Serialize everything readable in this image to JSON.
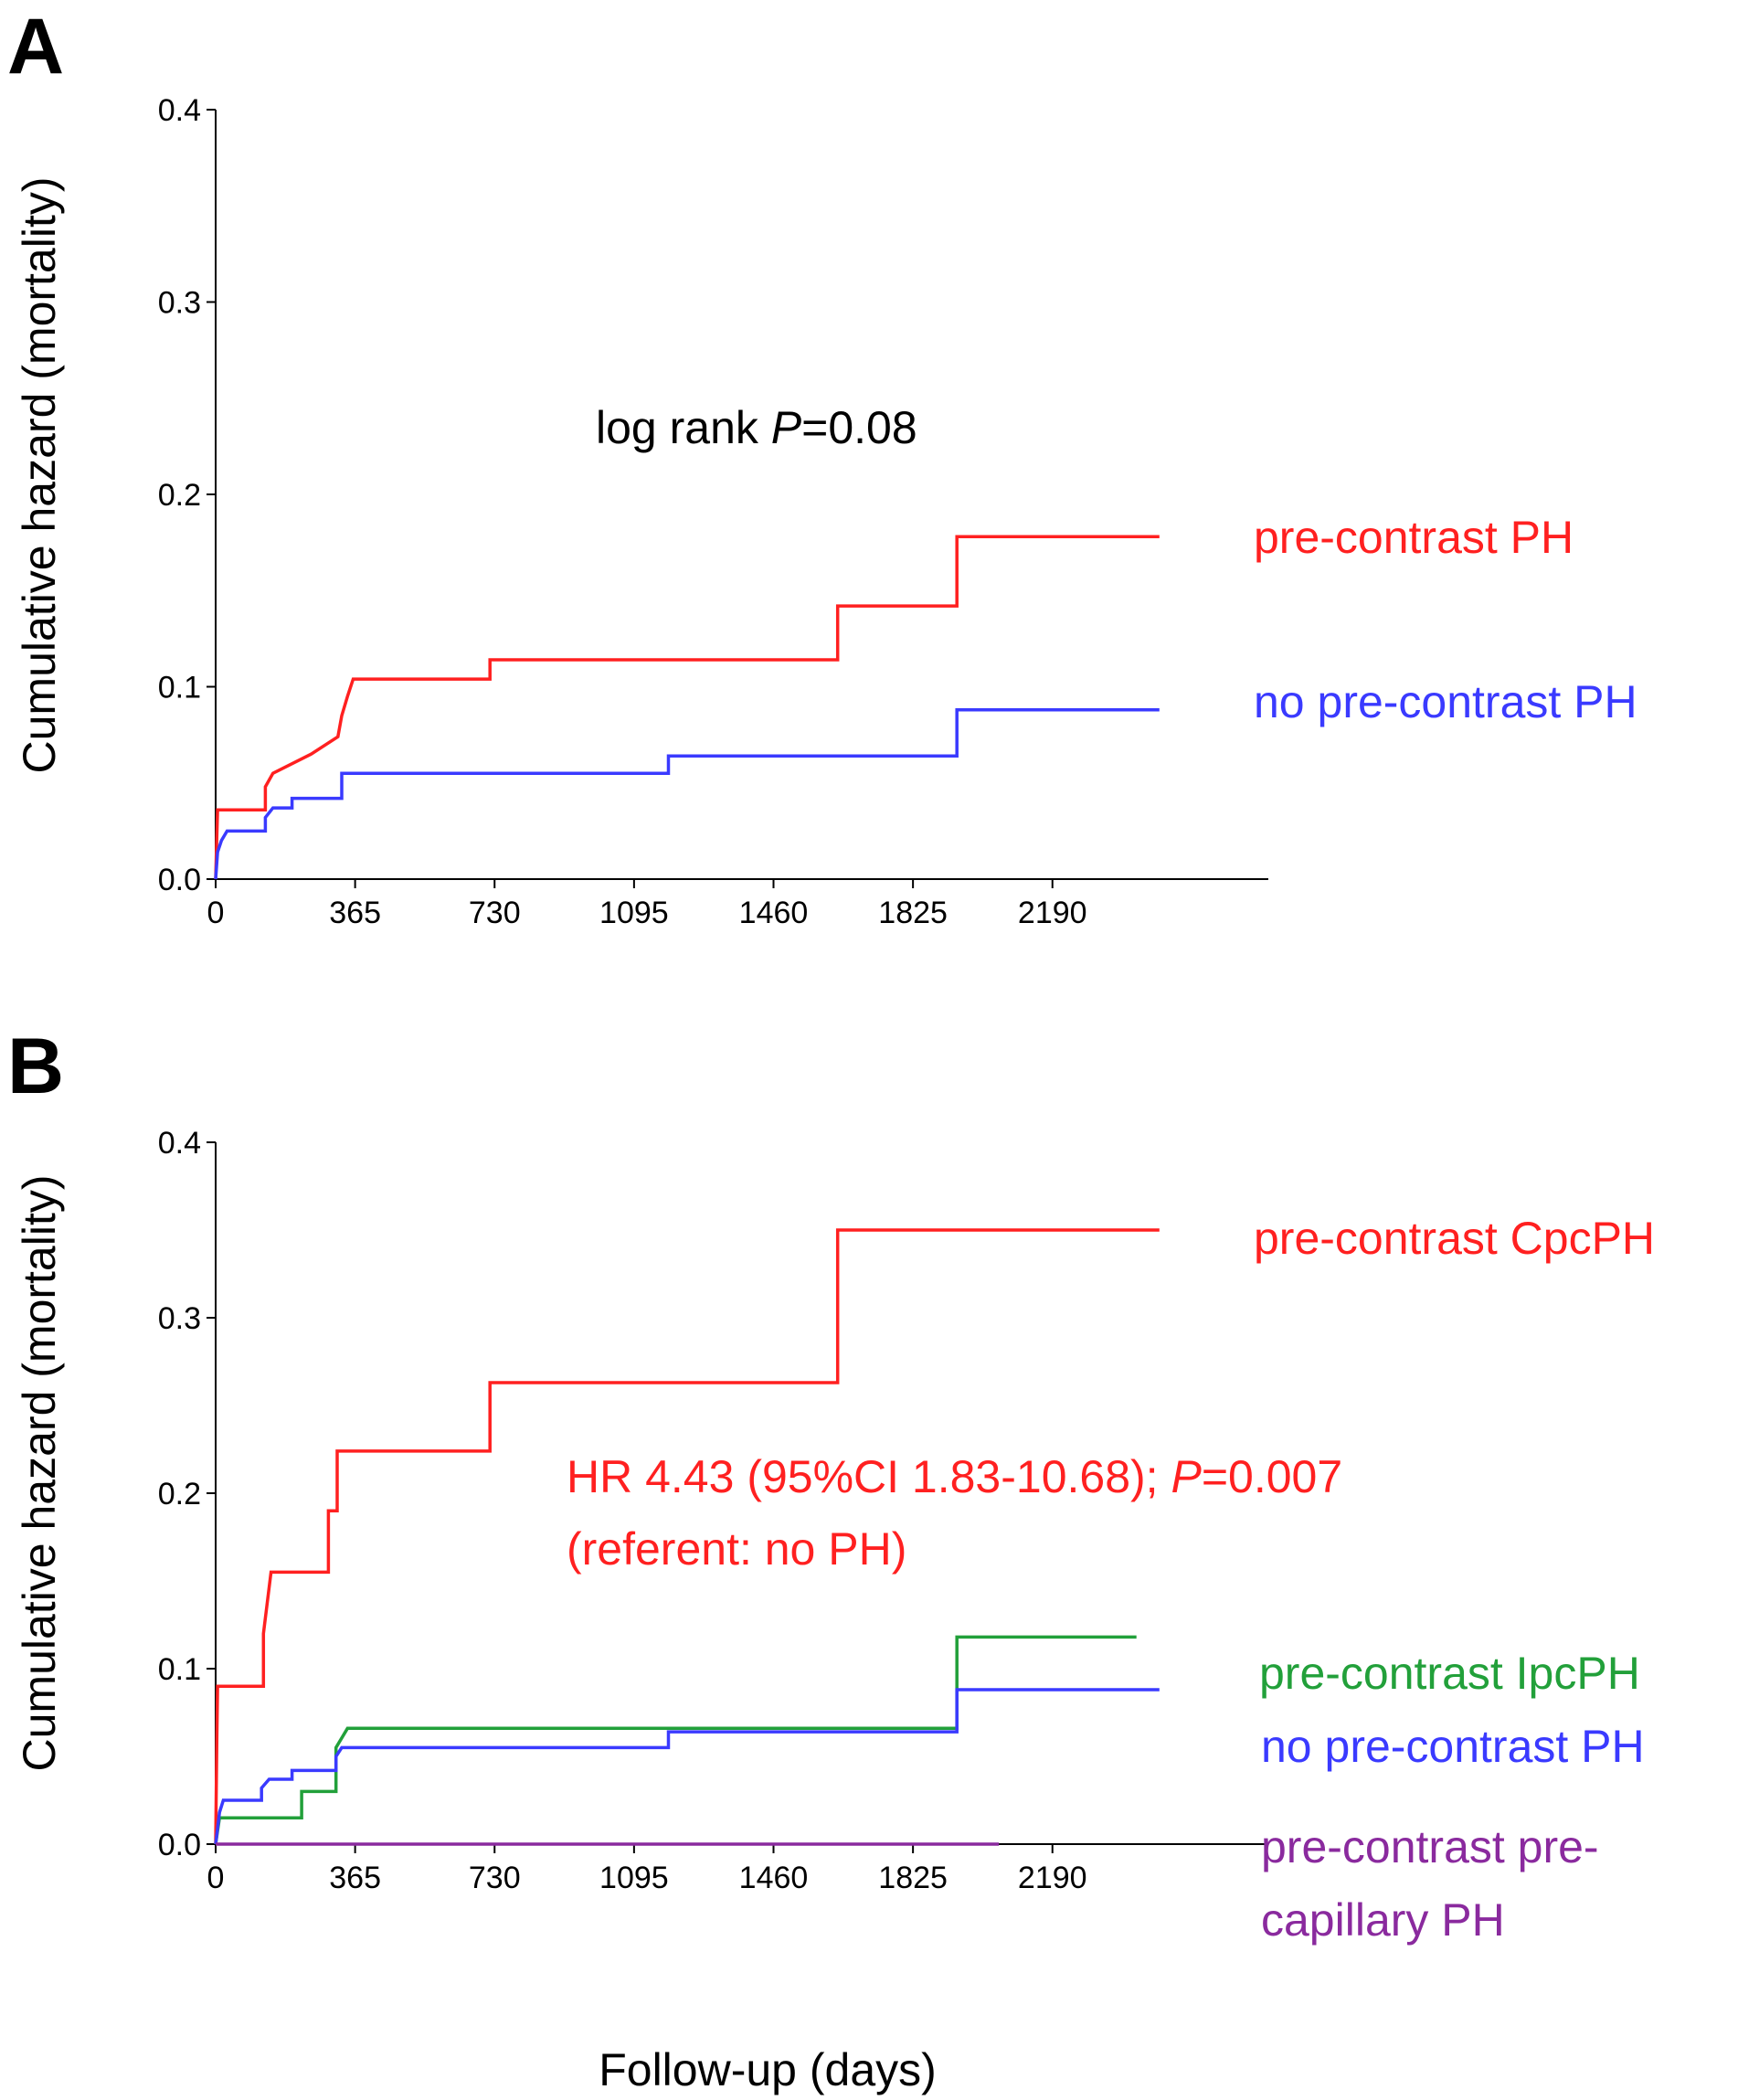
{
  "chart_data": [
    {
      "panel": "A",
      "type": "line",
      "step": true,
      "ylabel": "Cumulative hazard (mortality)",
      "xlabel": "",
      "xlim": [
        0,
        2755
      ],
      "ylim": [
        0,
        0.4
      ],
      "xticks": [
        0,
        365,
        730,
        1095,
        1460,
        1825,
        2190
      ],
      "yticks": [
        0.0,
        0.1,
        0.2,
        0.3,
        0.4
      ],
      "xtick_labels": [
        "0",
        "365",
        "730",
        "1095",
        "1460",
        "1825",
        "2190"
      ],
      "ytick_labels": [
        "0.0",
        "0.1",
        "0.2",
        "0.3",
        "0.4"
      ],
      "annotation": {
        "prefix": "log rank ",
        "p": "P",
        "suffix": "=0.08",
        "color": "#000000"
      },
      "series": [
        {
          "name": "pre-contrast PH",
          "color": "#ff2020",
          "points": [
            [
              0,
              0
            ],
            [
              5,
              0.036
            ],
            [
              130,
              0.036
            ],
            [
              130,
              0.048
            ],
            [
              150,
              0.055
            ],
            [
              250,
              0.065
            ],
            [
              320,
              0.074
            ],
            [
              330,
              0.085
            ],
            [
              345,
              0.095
            ],
            [
              360,
              0.104
            ],
            [
              718,
              0.104
            ],
            [
              718,
              0.114
            ],
            [
              1628,
              0.114
            ],
            [
              1628,
              0.142
            ],
            [
              1940,
              0.142
            ],
            [
              1940,
              0.178
            ],
            [
              2470,
              0.178
            ]
          ]
        },
        {
          "name": "no pre-contrast PH",
          "color": "#3a3aff",
          "points": [
            [
              0,
              0
            ],
            [
              5,
              0.014
            ],
            [
              15,
              0.02
            ],
            [
              30,
              0.025
            ],
            [
              130,
              0.025
            ],
            [
              130,
              0.032
            ],
            [
              150,
              0.037
            ],
            [
              200,
              0.037
            ],
            [
              200,
              0.042
            ],
            [
              330,
              0.042
            ],
            [
              330,
              0.055
            ],
            [
              1185,
              0.055
            ],
            [
              1185,
              0.064
            ],
            [
              1940,
              0.064
            ],
            [
              1940,
              0.088
            ],
            [
              2470,
              0.088
            ]
          ]
        }
      ]
    },
    {
      "panel": "B",
      "type": "line",
      "step": true,
      "ylabel": "Cumulative hazard (mortality)",
      "xlabel": "Follow-up (days)",
      "xlim": [
        0,
        2755
      ],
      "ylim": [
        0,
        0.4
      ],
      "xticks": [
        0,
        365,
        730,
        1095,
        1460,
        1825,
        2190
      ],
      "yticks": [
        0.0,
        0.1,
        0.2,
        0.3,
        0.4
      ],
      "xtick_labels": [
        "0",
        "365",
        "730",
        "1095",
        "1460",
        "1825",
        "2190"
      ],
      "ytick_labels": [
        "0.0",
        "0.1",
        "0.2",
        "0.3",
        "0.4"
      ],
      "annotation": {
        "line1_prefix": "HR 4.43 (95%CI 1.83-10.68); ",
        "p": "P",
        "line1_suffix": "=0.007",
        "line2": "(referent: no PH)",
        "color": "#ff2020"
      },
      "series": [
        {
          "name": "pre-contrast CpcPH",
          "color": "#ff2020",
          "points": [
            [
              0,
              0
            ],
            [
              3,
              0.06
            ],
            [
              5,
              0.09
            ],
            [
              125,
              0.09
            ],
            [
              125,
              0.12
            ],
            [
              145,
              0.155
            ],
            [
              295,
              0.155
            ],
            [
              295,
              0.19
            ],
            [
              318,
              0.19
            ],
            [
              318,
              0.224
            ],
            [
              718,
              0.224
            ],
            [
              718,
              0.263
            ],
            [
              1628,
              0.263
            ],
            [
              1628,
              0.35
            ],
            [
              2470,
              0.35
            ]
          ]
        },
        {
          "name": "pre-contrast IpcPH",
          "color": "#22a03a",
          "points": [
            [
              0,
              0
            ],
            [
              10,
              0.015
            ],
            [
              225,
              0.015
            ],
            [
              225,
              0.03
            ],
            [
              315,
              0.03
            ],
            [
              315,
              0.055
            ],
            [
              345,
              0.066
            ],
            [
              1940,
              0.066
            ],
            [
              1940,
              0.118
            ],
            [
              2410,
              0.118
            ]
          ]
        },
        {
          "name": "no pre-contrast PH",
          "color": "#3a3aff",
          "points": [
            [
              0,
              0
            ],
            [
              10,
              0.018
            ],
            [
              20,
              0.025
            ],
            [
              120,
              0.025
            ],
            [
              120,
              0.032
            ],
            [
              140,
              0.037
            ],
            [
              200,
              0.037
            ],
            [
              200,
              0.042
            ],
            [
              315,
              0.042
            ],
            [
              315,
              0.05
            ],
            [
              330,
              0.055
            ],
            [
              1185,
              0.055
            ],
            [
              1185,
              0.064
            ],
            [
              1940,
              0.064
            ],
            [
              1940,
              0.088
            ],
            [
              2470,
              0.088
            ]
          ]
        },
        {
          "name": "pre-contrast pre-capillary PH",
          "color": "#8a2a9e",
          "label_lines": [
            "pre-contrast pre-",
            "capillary PH"
          ],
          "points": [
            [
              0,
              0
            ],
            [
              2050,
              0
            ]
          ]
        }
      ]
    }
  ]
}
